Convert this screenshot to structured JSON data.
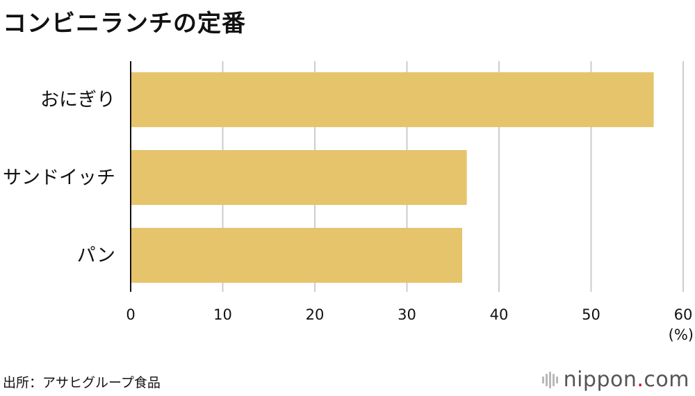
{
  "title": "コンビニランチの定番",
  "source": "出所：アサヒグループ食品",
  "logo": {
    "name": "nippon",
    "dot": ".",
    "tld": "com"
  },
  "colors": {
    "bar": "#E6C46C",
    "grid": "#cccccc",
    "axis": "#111111",
    "text": "#111111",
    "logo_dot": "#d6001c"
  },
  "chart_data": {
    "type": "bar",
    "orientation": "horizontal",
    "categories": [
      "おにぎり",
      "サンドイッチ",
      "パン"
    ],
    "values": [
      56.8,
      36.5,
      36.0
    ],
    "xlim": [
      0,
      60
    ],
    "xticks": [
      "0",
      "10",
      "20",
      "30",
      "40",
      "50",
      "60"
    ],
    "unit": "(%)",
    "grid": true
  }
}
